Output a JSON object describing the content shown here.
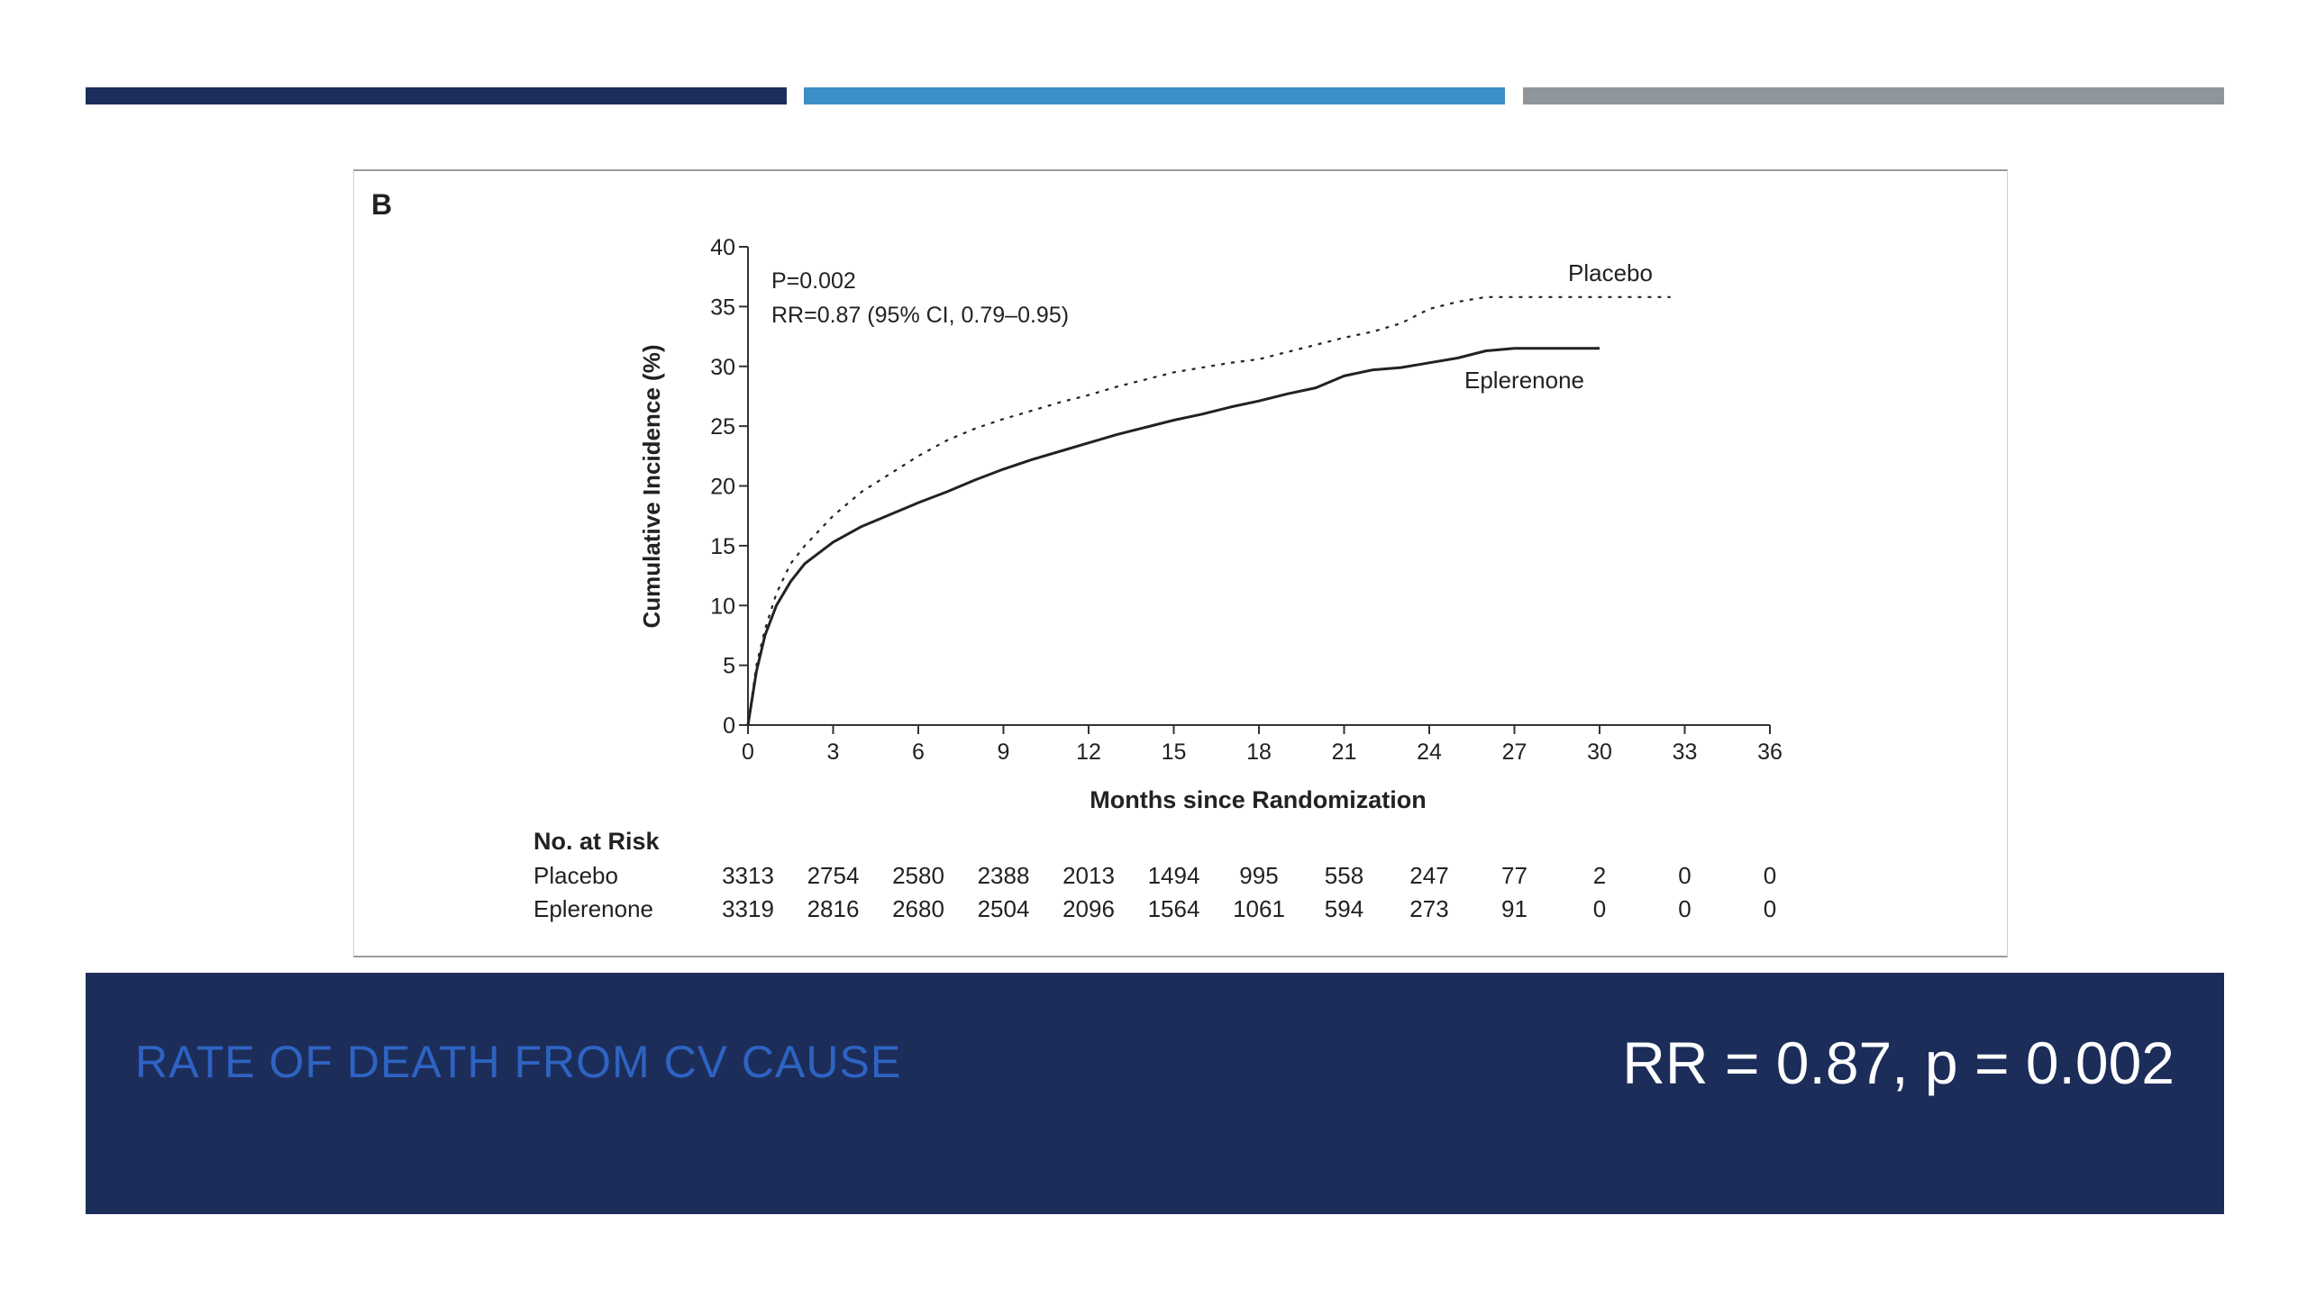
{
  "colors": {
    "bar_navy": "#1c2d5a",
    "bar_blue": "#3d8fc7",
    "bar_gray": "#8e969c",
    "footer_bg": "#1c2d5a",
    "footer_title": "#2e63c2",
    "footer_stat": "#ffffff",
    "axis": "#333333"
  },
  "footer": {
    "title": "RATE OF DEATH FROM CV CAUSE",
    "stat": "RR = 0.87, p = 0.002"
  },
  "chart_data": {
    "type": "line",
    "panel_label": "B",
    "annotations": [
      "P=0.002",
      "RR=0.87 (95% CI, 0.79–0.95)"
    ],
    "xlabel": "Months since Randomization",
    "ylabel": "Cumulative Incidence (%)",
    "xlim": [
      0,
      36
    ],
    "ylim": [
      0,
      40
    ],
    "xticks": [
      0,
      3,
      6,
      9,
      12,
      15,
      18,
      21,
      24,
      27,
      30,
      33,
      36
    ],
    "yticks": [
      0,
      5,
      10,
      15,
      20,
      25,
      30,
      35,
      40
    ],
    "series": [
      {
        "name": "Placebo",
        "style": "dotted",
        "x": [
          0,
          0.3,
          0.6,
          1,
          1.5,
          2,
          3,
          4,
          5,
          6,
          7,
          8,
          9,
          10,
          11,
          12,
          13,
          14,
          15,
          16,
          17,
          18,
          19,
          20,
          21,
          22,
          23,
          24,
          25,
          26,
          27,
          28,
          29,
          30,
          31,
          32,
          32.5
        ],
        "y": [
          0,
          5,
          8,
          11,
          13.5,
          15,
          17.5,
          19.5,
          21,
          22.5,
          23.8,
          24.8,
          25.6,
          26.3,
          27,
          27.6,
          28.3,
          28.9,
          29.5,
          29.9,
          30.3,
          30.6,
          31.2,
          31.8,
          32.4,
          32.9,
          33.6,
          34.8,
          35.4,
          35.8,
          35.8,
          35.8,
          35.8,
          35.8,
          35.8,
          35.8,
          35.8
        ]
      },
      {
        "name": "Eplerenone",
        "style": "solid",
        "x": [
          0,
          0.3,
          0.6,
          1,
          1.5,
          2,
          3,
          4,
          5,
          6,
          7,
          8,
          9,
          10,
          11,
          12,
          13,
          14,
          15,
          16,
          17,
          18,
          19,
          20,
          21,
          22,
          23,
          24,
          25,
          26,
          27,
          28,
          29,
          30
        ],
        "y": [
          0,
          4.5,
          7.5,
          10,
          12,
          13.5,
          15.3,
          16.6,
          17.6,
          18.6,
          19.5,
          20.5,
          21.4,
          22.2,
          22.9,
          23.6,
          24.3,
          24.9,
          25.5,
          26,
          26.6,
          27.1,
          27.7,
          28.2,
          29.2,
          29.7,
          29.9,
          30.3,
          30.7,
          31.3,
          31.5,
          31.5,
          31.5,
          31.5
        ]
      }
    ],
    "risk_table": {
      "header": "No. at Risk",
      "rows": [
        {
          "label": "Placebo",
          "values": [
            "3313",
            "2754",
            "2580",
            "2388",
            "2013",
            "1494",
            "995",
            "558",
            "247",
            "77",
            "2",
            "0",
            "0"
          ]
        },
        {
          "label": "Eplerenone",
          "values": [
            "3319",
            "2816",
            "2680",
            "2504",
            "2096",
            "1564",
            "1061",
            "594",
            "273",
            "91",
            "0",
            "0",
            "0"
          ]
        }
      ]
    }
  }
}
